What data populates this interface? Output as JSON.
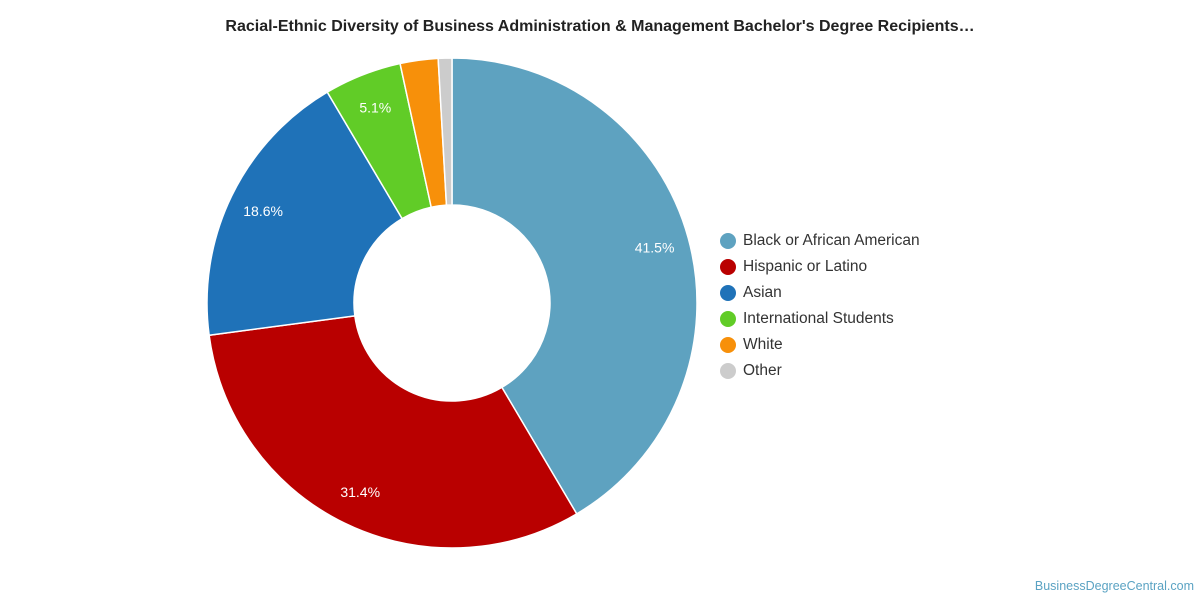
{
  "chart_data": {
    "type": "pie",
    "donut": true,
    "title": "Racial-Ethnic Diversity of Business Administration & Management Bachelor's Degree Recipients…",
    "categories": [
      "Black or African American",
      "Hispanic or Latino",
      "Asian",
      "International Students",
      "White",
      "Other"
    ],
    "values": [
      41.5,
      31.4,
      18.6,
      5.1,
      2.5,
      0.9
    ],
    "data_labels": [
      "41.5%",
      "31.4%",
      "18.6%",
      "5.1%",
      "",
      ""
    ],
    "colors": [
      "#5ea2c0",
      "#b90000",
      "#1f72b8",
      "#61cc27",
      "#f7900a",
      "#cccccc"
    ],
    "legend_placement": "right"
  },
  "watermark": "BusinessDegreeCentral.com"
}
